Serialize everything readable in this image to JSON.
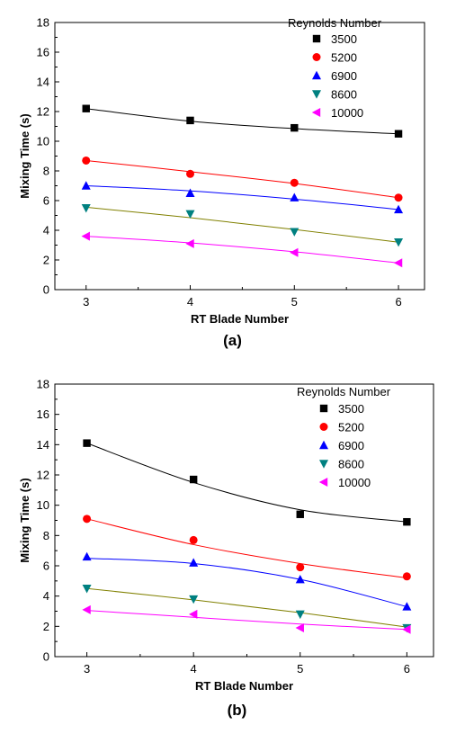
{
  "chart_data": [
    {
      "type": "scatter",
      "panel_label": "(a)",
      "xlabel": "RT Blade Number",
      "ylabel": "Mixing Time (s)",
      "xlim": [
        2.7,
        6.25
      ],
      "ylim": [
        0,
        18
      ],
      "xticks": [
        3,
        4,
        5,
        6
      ],
      "yticks": [
        0,
        2,
        4,
        6,
        8,
        10,
        12,
        14,
        16,
        18
      ],
      "legend_title": "Reynolds Number",
      "legend_position": "top-right",
      "x": [
        3,
        4,
        5,
        6
      ],
      "series": [
        {
          "name": "3500",
          "marker": "square",
          "color": "#000000",
          "line_color": "#000000",
          "values": [
            12.2,
            11.4,
            10.9,
            10.5
          ],
          "fit": [
            12.2,
            11.35,
            10.85,
            10.5
          ]
        },
        {
          "name": "5200",
          "marker": "circle",
          "color": "#ff0000",
          "line_color": "#ff0000",
          "values": [
            8.7,
            7.8,
            7.2,
            6.2
          ],
          "fit": [
            8.7,
            7.95,
            7.15,
            6.2
          ]
        },
        {
          "name": "6900",
          "marker": "triangle-up",
          "color": "#0000ff",
          "line_color": "#0000ff",
          "values": [
            7.0,
            6.5,
            6.2,
            5.4
          ],
          "fit": [
            7.0,
            6.65,
            6.1,
            5.4
          ]
        },
        {
          "name": "8600",
          "marker": "triangle-down",
          "color": "#008080",
          "line_color": "#808000",
          "values": [
            5.5,
            5.1,
            3.9,
            3.2
          ],
          "fit": [
            5.55,
            4.85,
            4.05,
            3.2
          ]
        },
        {
          "name": "10000",
          "marker": "triangle-left",
          "color": "#ff00ff",
          "line_color": "#ff00ff",
          "values": [
            3.6,
            3.1,
            2.5,
            1.8
          ],
          "fit": [
            3.6,
            3.15,
            2.55,
            1.8
          ]
        }
      ]
    },
    {
      "type": "scatter",
      "panel_label": "(b)",
      "xlabel": "RT Blade Number",
      "ylabel": "Mixing Time (s)",
      "xlim": [
        2.7,
        6.25
      ],
      "ylim": [
        0,
        18
      ],
      "xticks": [
        3,
        4,
        5,
        6
      ],
      "yticks": [
        0,
        2,
        4,
        6,
        8,
        10,
        12,
        14,
        16,
        18
      ],
      "legend_title": "Reynolds Number",
      "legend_position": "top-right",
      "x": [
        3,
        4,
        5,
        6
      ],
      "series": [
        {
          "name": "3500",
          "marker": "square",
          "color": "#000000",
          "line_color": "#000000",
          "values": [
            14.1,
            11.7,
            9.4,
            8.9
          ],
          "fit": [
            14.1,
            11.5,
            9.7,
            8.9
          ]
        },
        {
          "name": "5200",
          "marker": "circle",
          "color": "#ff0000",
          "line_color": "#ff0000",
          "values": [
            9.1,
            7.7,
            5.9,
            5.3
          ],
          "fit": [
            9.1,
            7.4,
            6.15,
            5.2
          ]
        },
        {
          "name": "6900",
          "marker": "triangle-up",
          "color": "#0000ff",
          "line_color": "#0000ff",
          "values": [
            6.6,
            6.2,
            5.1,
            3.3
          ],
          "fit": [
            6.5,
            6.15,
            5.1,
            3.3
          ]
        },
        {
          "name": "8600",
          "marker": "triangle-down",
          "color": "#008080",
          "line_color": "#808000",
          "values": [
            4.5,
            3.8,
            2.8,
            1.9
          ],
          "fit": [
            4.5,
            3.75,
            2.9,
            1.95
          ]
        },
        {
          "name": "10000",
          "marker": "triangle-left",
          "color": "#ff00ff",
          "line_color": "#ff00ff",
          "values": [
            3.1,
            2.8,
            1.9,
            1.8
          ],
          "fit": [
            3.05,
            2.6,
            2.15,
            1.8
          ]
        }
      ]
    }
  ]
}
